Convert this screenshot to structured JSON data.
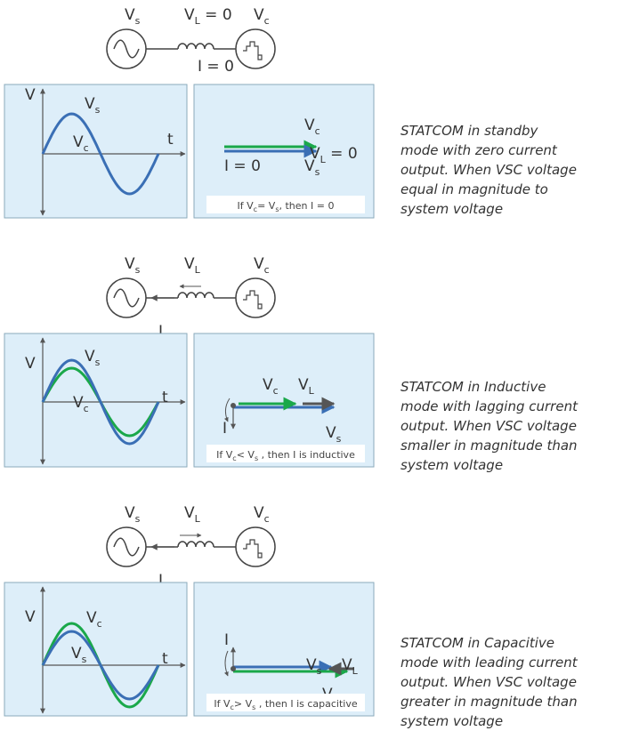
{
  "sections": [
    {
      "circuit": {
        "vs": [
          {
            "text": "V"
          },
          {
            "sub": "s"
          }
        ],
        "vl": [
          {
            "text": "V"
          },
          {
            "sub": "L"
          },
          {
            "text": " = 0"
          }
        ],
        "vc": [
          {
            "text": "V"
          },
          {
            "sub": "c"
          }
        ],
        "current": [
          {
            "text": "I = 0"
          }
        ]
      },
      "waveform": {
        "v": [
          {
            "text": "V"
          }
        ],
        "t": [
          {
            "text": "t"
          }
        ],
        "top": [
          {
            "text": "V"
          },
          {
            "sub": "s"
          }
        ],
        "bottom": [
          {
            "text": "V"
          },
          {
            "sub": "c"
          }
        ]
      },
      "phasor": {
        "labels": [
          [
            {
              "text": "V"
            },
            {
              "sub": "c"
            }
          ],
          [
            {
              "text": "V"
            },
            {
              "sub": "L"
            },
            {
              "text": " = 0"
            }
          ],
          [
            {
              "text": "V"
            },
            {
              "sub": "s"
            }
          ],
          [
            {
              "text": "I = 0"
            }
          ]
        ],
        "condition": [
          {
            "text": "If V"
          },
          {
            "sub": "c"
          },
          {
            "text": "= V"
          },
          {
            "sub": "s"
          },
          {
            "text": ", then I = 0"
          }
        ]
      },
      "description": [
        "STATCOM in standby",
        "mode with zero current",
        "output. When VSC voltage",
        "equal in magnitude to",
        "system voltage"
      ]
    },
    {
      "circuit": {
        "vs": [
          {
            "text": "V"
          },
          {
            "sub": "s"
          }
        ],
        "vl": [
          {
            "text": "V"
          },
          {
            "sub": "L"
          }
        ],
        "vc": [
          {
            "text": "V"
          },
          {
            "sub": "c"
          }
        ],
        "current": [
          {
            "text": "I"
          }
        ]
      },
      "waveform": {
        "v": [
          {
            "text": "V"
          }
        ],
        "t": [
          {
            "text": "t"
          }
        ],
        "top": [
          {
            "text": "V"
          },
          {
            "sub": "s"
          }
        ],
        "bottom": [
          {
            "text": "V"
          },
          {
            "sub": "c"
          }
        ]
      },
      "phasor": {
        "labels": [
          [
            {
              "text": "V"
            },
            {
              "sub": "c"
            }
          ],
          [
            {
              "text": "V"
            },
            {
              "sub": "L"
            }
          ],
          [
            {
              "text": "V"
            },
            {
              "sub": "s"
            }
          ],
          [
            {
              "text": "I"
            }
          ]
        ],
        "condition": [
          {
            "text": "If V"
          },
          {
            "sub": "c"
          },
          {
            "text": "< V"
          },
          {
            "sub": "s"
          },
          {
            "text": " , then I is inductive"
          }
        ]
      },
      "description": [
        "STATCOM in Inductive",
        "mode with lagging current",
        "output. When VSC voltage",
        "smaller in magnitude than",
        "system voltage"
      ]
    },
    {
      "circuit": {
        "vs": [
          {
            "text": "V"
          },
          {
            "sub": "s"
          }
        ],
        "vl": [
          {
            "text": "V"
          },
          {
            "sub": "L"
          }
        ],
        "vc": [
          {
            "text": "V"
          },
          {
            "sub": "c"
          }
        ],
        "current": [
          {
            "text": "I"
          }
        ]
      },
      "waveform": {
        "v": [
          {
            "text": "V"
          }
        ],
        "t": [
          {
            "text": "t"
          }
        ],
        "top": [
          {
            "text": "V"
          },
          {
            "sub": "c"
          }
        ],
        "bottom": [
          {
            "text": "V"
          },
          {
            "sub": "s"
          }
        ]
      },
      "phasor": {
        "labels": [
          [
            {
              "text": "I"
            }
          ],
          [
            {
              "text": "V"
            },
            {
              "sub": "s"
            }
          ],
          [
            {
              "text": "V"
            },
            {
              "sub": "L"
            }
          ],
          [
            {
              "text": "V"
            },
            {
              "sub": "c"
            }
          ]
        ],
        "condition": [
          {
            "text": "If V"
          },
          {
            "sub": "c"
          },
          {
            "text": "> V"
          },
          {
            "sub": "s"
          },
          {
            "text": " , then I is capacitive"
          }
        ]
      },
      "description": [
        "STATCOM in Capacitive",
        "mode with leading current",
        "output. When VSC voltage",
        "greater in magnitude than",
        "system voltage"
      ]
    }
  ]
}
